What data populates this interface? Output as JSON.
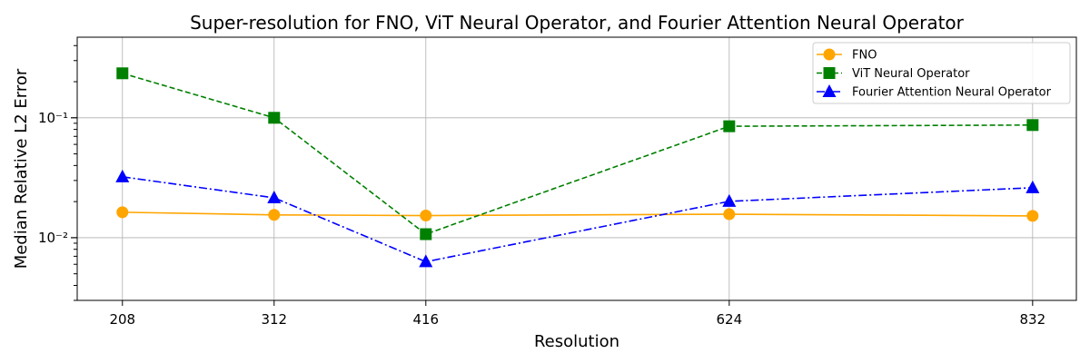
{
  "chart_data": {
    "type": "line",
    "title": "Super-resolution for FNO, ViT Neural Operator, and Fourier Attention Neural Operator",
    "xlabel": "Resolution",
    "ylabel": "Median Relative L2 Error",
    "x": [
      208,
      312,
      416,
      624,
      832
    ],
    "x_tick_labels": [
      "208",
      "312",
      "416",
      "624",
      "832"
    ],
    "xlim": [
      177,
      862
    ],
    "y_scale": "log",
    "ylim": [
      0.003,
      0.47
    ],
    "y_ticks": [
      0.01,
      0.1
    ],
    "y_tick_labels": [
      "10⁻²",
      "10⁻¹"
    ],
    "grid": true,
    "legend_position": "top-right",
    "series": [
      {
        "name": "FNO",
        "color": "#ffa500",
        "line_style": "solid",
        "marker": "circle",
        "values": [
          0.0163,
          0.0155,
          0.0153,
          0.0157,
          0.0152
        ]
      },
      {
        "name": "ViT Neural Operator",
        "color": "#008000",
        "line_style": "dashed",
        "marker": "square",
        "values": [
          0.235,
          0.1,
          0.0107,
          0.085,
          0.087
        ]
      },
      {
        "name": "Fourier Attention Neural Operator",
        "color": "#0000ff",
        "line_style": "dash-dot",
        "marker": "triangle",
        "values": [
          0.0322,
          0.0215,
          0.0063,
          0.0201,
          0.0261
        ]
      }
    ]
  }
}
